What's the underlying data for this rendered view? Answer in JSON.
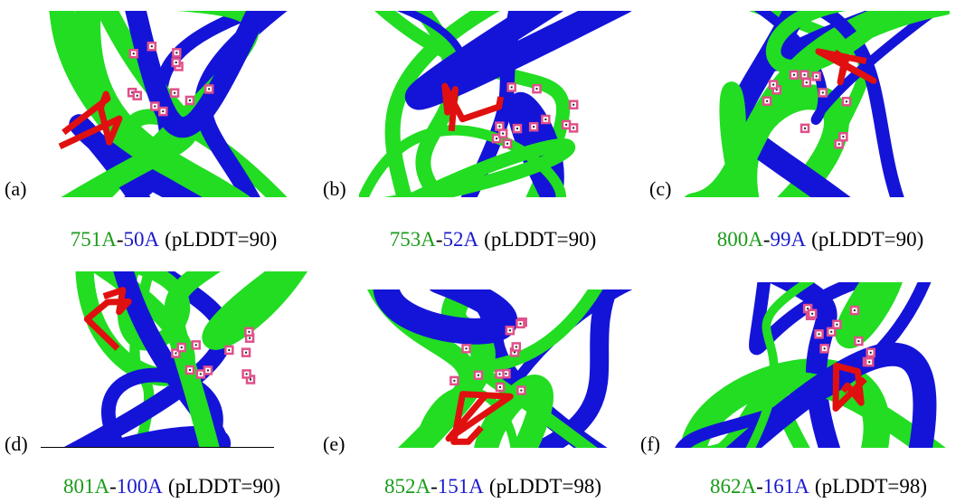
{
  "panels": [
    {
      "label": "(a)",
      "caption": {
        "first": "751A",
        "sep": "-",
        "second": "50A",
        "score": "(pLDDT=90)"
      }
    },
    {
      "label": "(b)",
      "caption": {
        "first": "753A",
        "sep": "-",
        "second": "52A",
        "score": "(pLDDT=90)"
      }
    },
    {
      "label": "(c)",
      "caption": {
        "first": "800A",
        "sep": "-",
        "second": "99A",
        "score": "(pLDDT=90)"
      }
    },
    {
      "label": "(d)",
      "caption": {
        "first": "801A",
        "sep": "-",
        "second": "100A",
        "score": "(pLDDT=90)"
      }
    },
    {
      "label": "(e)",
      "caption": {
        "first": "852A",
        "sep": "-",
        "second": "151A",
        "score": "(pLDDT=98)"
      }
    },
    {
      "label": "(f)",
      "caption": {
        "first": "862A",
        "sep": "-",
        "second": "161A",
        "score": "(pLDDT=98)"
      }
    }
  ]
}
